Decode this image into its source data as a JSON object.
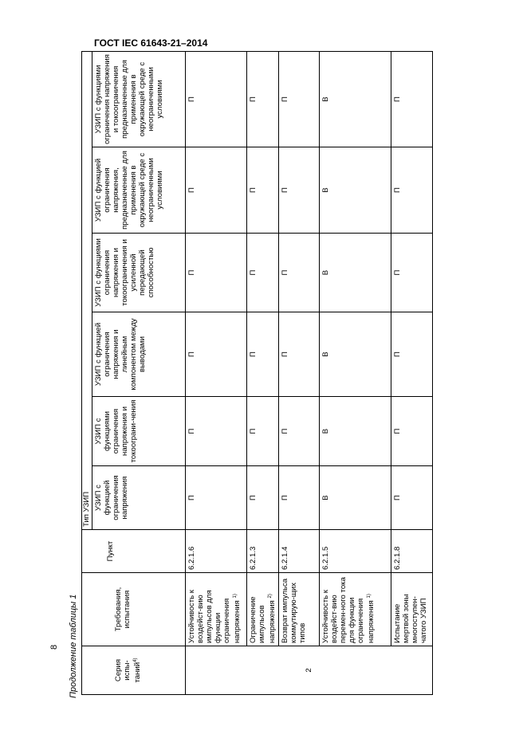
{
  "doc_header": "ГОСТ IEC 61643-21–2014",
  "page_number": "8",
  "caption": "Продолжение таблицы 1",
  "table": {
    "headers": {
      "series": "Серия испы-таний",
      "series_note": "4)",
      "requirements": "Требования, испытания",
      "clause": "Пункт",
      "type_group": "Тип УЗИП",
      "types": [
        "УЗИП с функцией ограничения напряжения",
        "УЗИП с функциями ограничения напряжения и токоограни-чения",
        "УЗИП с функцией ограничения напряжения и линейным компонентом между выводами",
        "УЗИП с функциями ограничения напряжения и токоограничения и усиленной передающей способностью",
        "УЗИП с функцией ограничения напряжения, предназначенные для применения в окружающей среде с неограниченными условиями",
        "УЗИП с функциями ограничения напряжения и токоограничения предназначенные для применения в окружающей среде с неограниченными условиями"
      ]
    },
    "series_value": "2",
    "rows": [
      {
        "requirement": "Устойчивость к воздейст-вию импульсов для функции ограничения напряжения",
        "note": "1)",
        "clause": "6.2.1.6",
        "values": [
          "П",
          "П",
          "П",
          "П",
          "П",
          "П"
        ]
      },
      {
        "requirement": "Ограничение импульсов напряжения",
        "note": "2)",
        "clause": "6.2.1.3",
        "values": [
          "П",
          "П",
          "П",
          "П",
          "П",
          "П"
        ]
      },
      {
        "requirement": "Возврат импульса коммутирую-щих типов",
        "note": "",
        "clause": "6.2.1.4",
        "values": [
          "П",
          "П",
          "П",
          "П",
          "П",
          "П"
        ]
      },
      {
        "requirement": "Устойчивость к воздейст-вию перемен-ного тока для функции ограничения напряжения",
        "note": "1)",
        "clause": "6.2.1.5",
        "values": [
          "В",
          "В",
          "В",
          "В",
          "В",
          "В"
        ]
      },
      {
        "requirement": "Испытание мертвой зоны многоступен-чатого УЗИП",
        "note": "",
        "clause": "6.2.1.8",
        "values": [
          "П",
          "П",
          "П",
          "П",
          "П",
          "П"
        ]
      }
    ]
  }
}
